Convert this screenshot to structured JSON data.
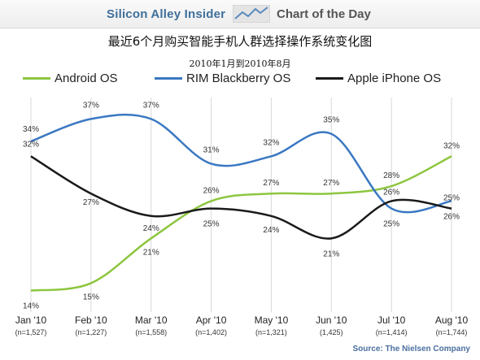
{
  "banner": {
    "brand": "Silicon Alley Insider",
    "chart_of_day": "Chart of the Day",
    "icon": "trend-line-icon"
  },
  "source": "Source: The Nielsen Company",
  "colors": {
    "android": "#8dc63f",
    "rim": "#3a78c2",
    "apple": "#1a1a1a",
    "grid": "#d9d9d9",
    "brand": "#3f6f9a"
  },
  "chart_data": {
    "type": "line",
    "title": "最近6个月购买智能手机人群选择操作系统变化图",
    "subtitle": "2010年1月到2010年8月",
    "categories": [
      "Jan '10",
      "Feb '10",
      "Mar '10",
      "Apr '10",
      "May '10",
      "Jun '10",
      "Jul '10",
      "Aug '10"
    ],
    "sample_sizes": [
      "(n=1,527)",
      "(n=1,227)",
      "(n=1,558)",
      "(n=1,402)",
      "(n=1,321)",
      "(1,425)",
      "(n=1,414)",
      "(n=1,744)"
    ],
    "series": [
      {
        "name": "Android OS",
        "values": [
          14,
          15,
          21,
          26,
          27,
          27,
          28,
          32
        ],
        "labels": [
          "14%",
          "15%",
          "21%",
          "26%",
          "27%",
          "27%",
          "28%",
          "32%"
        ]
      },
      {
        "name": "RIM Blackberry OS",
        "values": [
          34,
          37,
          37,
          31,
          32,
          35,
          25,
          26
        ],
        "labels": [
          "34%",
          "37%",
          "37%",
          "31%",
          "32%",
          "35%",
          "25%",
          "26%"
        ]
      },
      {
        "name": "Apple iPhone OS",
        "values": [
          32,
          27,
          24,
          25,
          24,
          21,
          26,
          25
        ],
        "labels": [
          "32%",
          "27%",
          "24%",
          "25%",
          "24%",
          "21%",
          "26%",
          "25%"
        ]
      }
    ],
    "ylim": [
      12,
      39
    ],
    "grid": "vertical",
    "legend": "top",
    "xlabel": "",
    "ylabel": ""
  }
}
